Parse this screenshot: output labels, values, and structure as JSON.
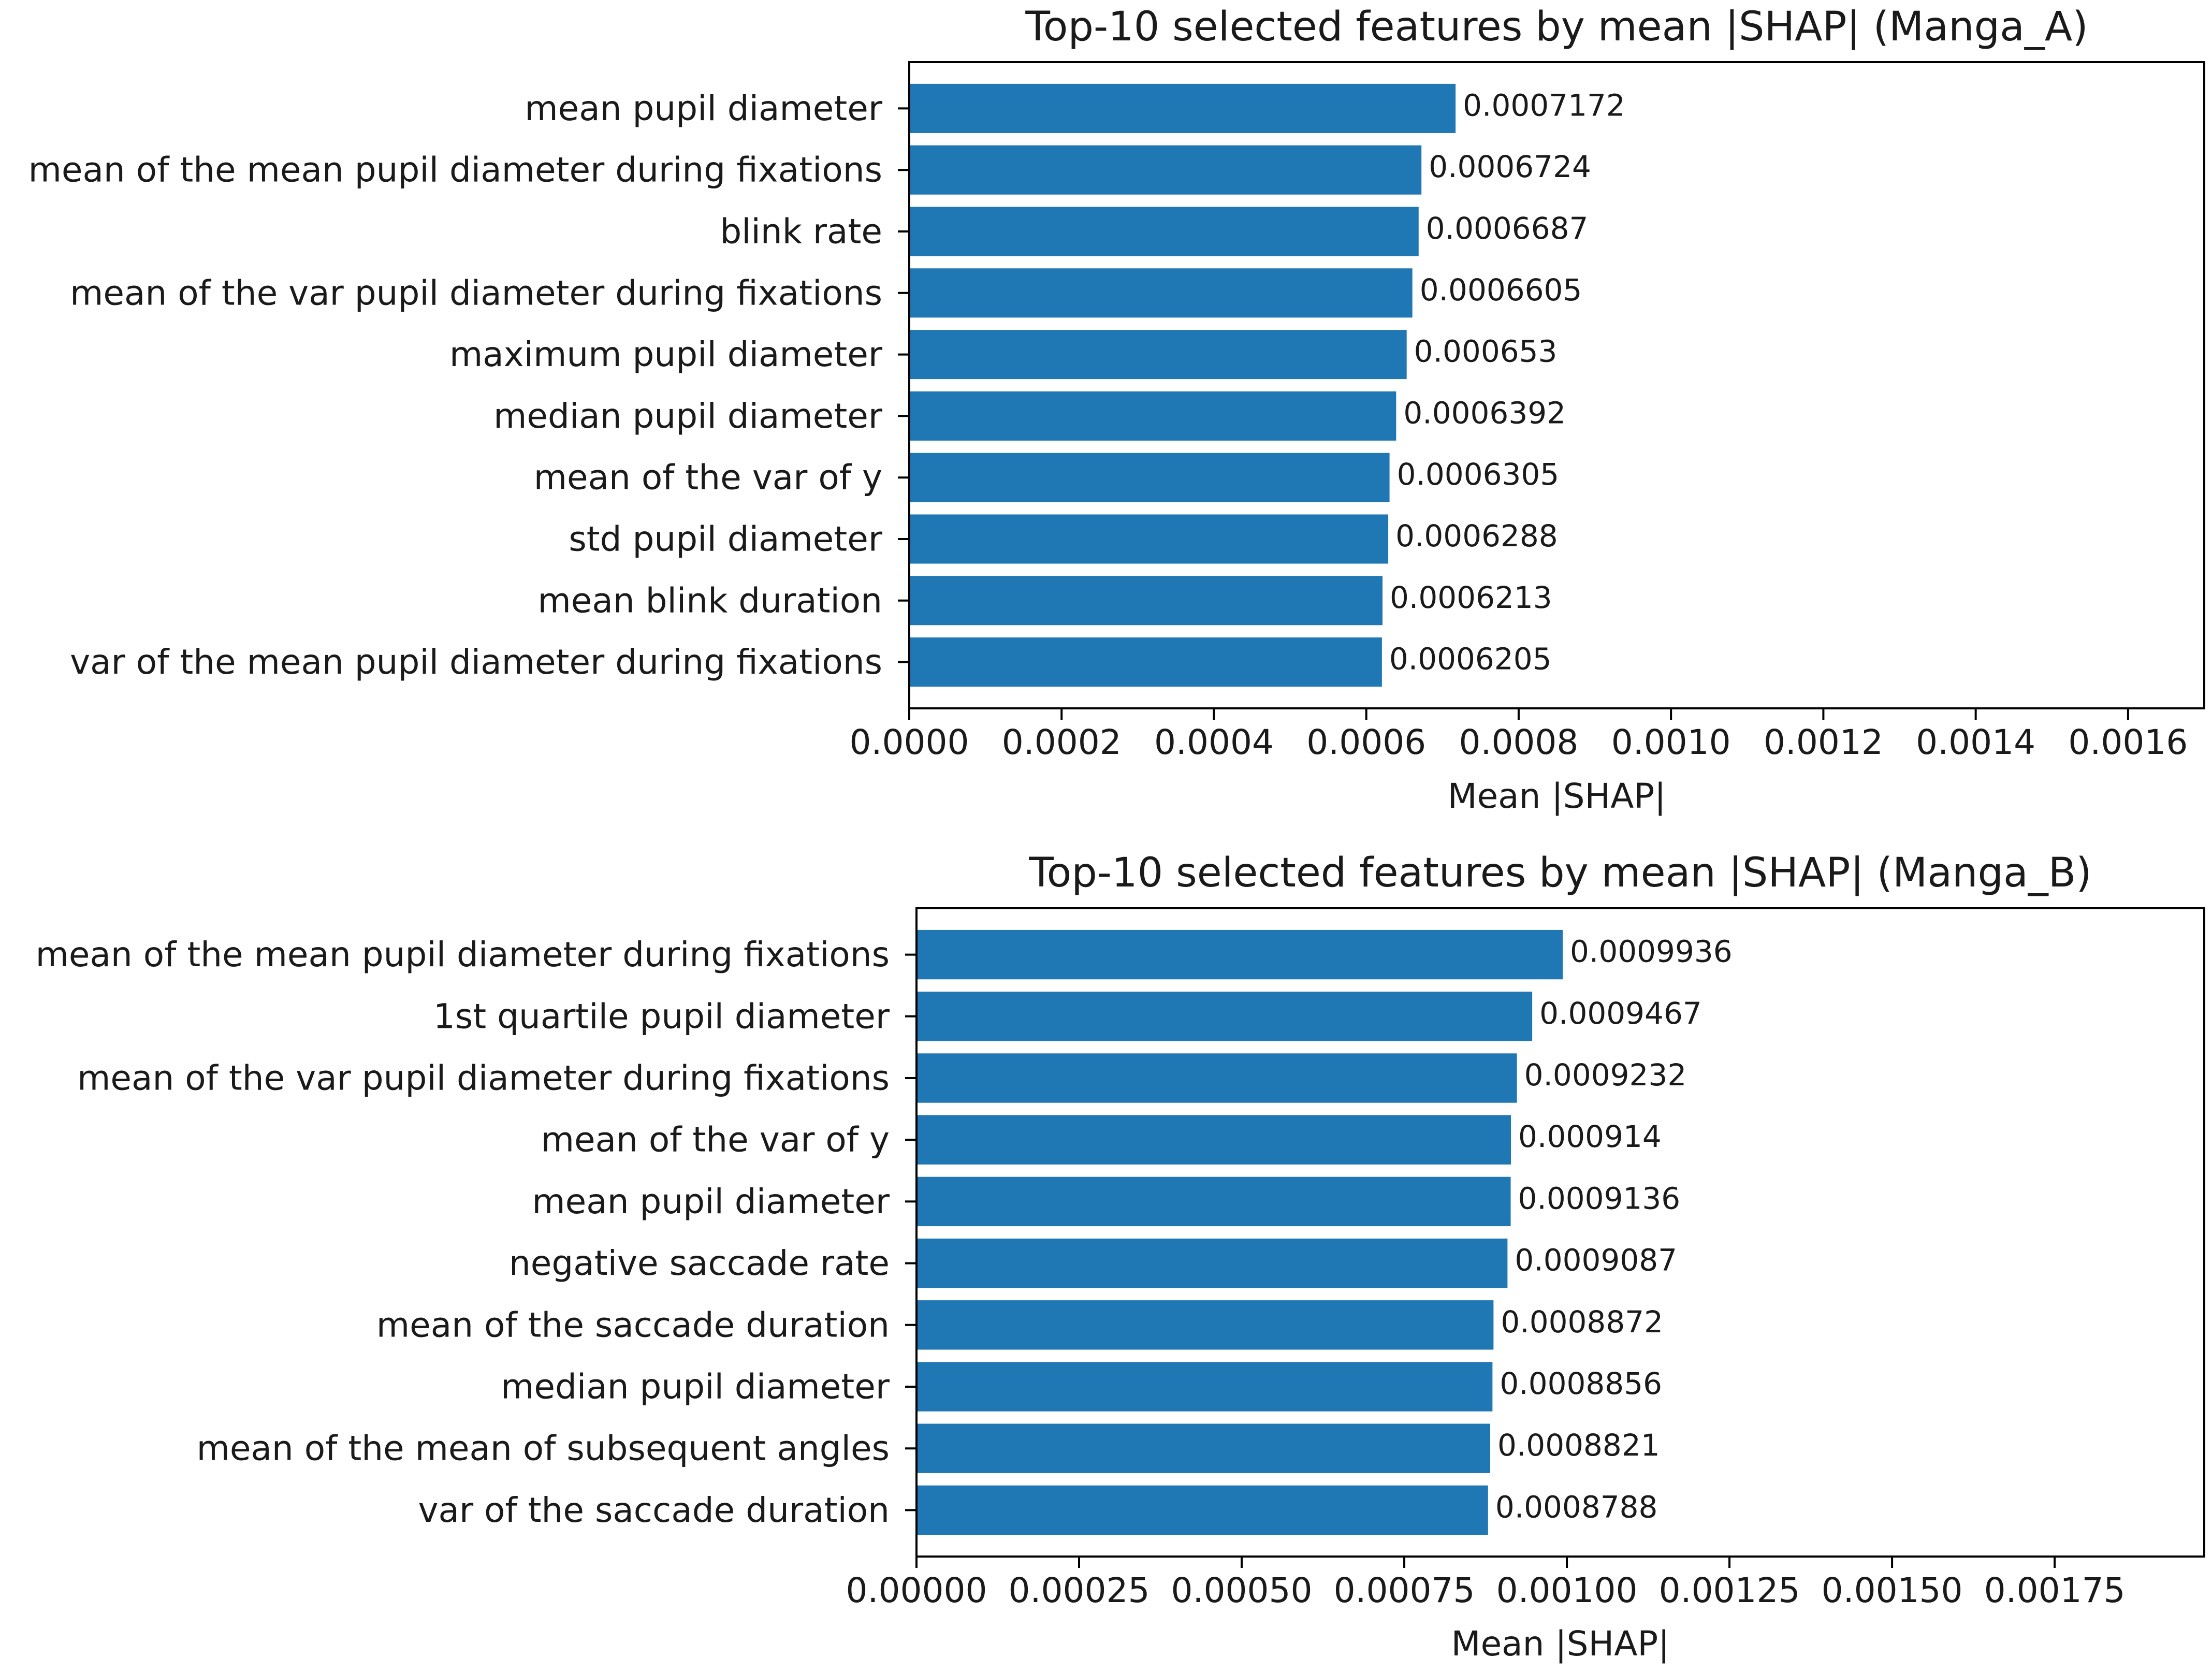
{
  "chart_data": [
    {
      "type": "bar",
      "orientation": "horizontal",
      "title": "Top-10 selected features by mean |SHAP| (Manga_A)",
      "xlabel": "Mean |SHAP|",
      "ylabel": "",
      "xlim": [
        0,
        0.0017
      ],
      "xticks": [
        "0.0000",
        "0.0002",
        "0.0004",
        "0.0006",
        "0.0008",
        "0.0010",
        "0.0012",
        "0.0014",
        "0.0016"
      ],
      "xtick_values": [
        0,
        0.0002,
        0.0004,
        0.0006,
        0.0008,
        0.001,
        0.0012,
        0.0014,
        0.0016
      ],
      "bar_color": "#1f77b4",
      "grid": false,
      "categories": [
        "mean pupil diameter",
        "mean of the mean pupil diameter during fixations",
        "blink rate",
        "mean of the var pupil diameter during fixations",
        "maximum pupil diameter",
        "median pupil diameter",
        "mean of the var of y",
        "std pupil diameter",
        "mean blink duration",
        "var of the mean pupil diameter during fixations"
      ],
      "values": [
        0.0007172,
        0.0006724,
        0.0006687,
        0.0006605,
        0.000653,
        0.0006392,
        0.0006305,
        0.0006288,
        0.0006213,
        0.0006205
      ],
      "value_labels": [
        "0.0007172",
        "0.0006724",
        "0.0006687",
        "0.0006605",
        "0.000653",
        "0.0006392",
        "0.0006305",
        "0.0006288",
        "0.0006213",
        "0.0006205"
      ]
    },
    {
      "type": "bar",
      "orientation": "horizontal",
      "title": "Top-10 selected features by mean |SHAP| (Manga_B)",
      "xlabel": "Mean |SHAP|",
      "ylabel": "",
      "xlim": [
        0,
        0.00198
      ],
      "xticks": [
        "0.00000",
        "0.00025",
        "0.00050",
        "0.00075",
        "0.00100",
        "0.00125",
        "0.00150",
        "0.00175"
      ],
      "xtick_values": [
        0,
        0.00025,
        0.0005,
        0.00075,
        0.001,
        0.00125,
        0.0015,
        0.00175
      ],
      "bar_color": "#1f77b4",
      "grid": false,
      "categories": [
        "mean of the mean pupil diameter during fixations",
        "1st quartile pupil diameter",
        "mean of the var pupil diameter during fixations",
        "mean of the var of y",
        "mean pupil diameter",
        "negative saccade rate",
        "mean of the saccade duration",
        "median pupil diameter",
        "mean of the mean of subsequent angles",
        "var of the saccade duration"
      ],
      "values": [
        0.0009936,
        0.0009467,
        0.0009232,
        0.000914,
        0.0009136,
        0.0009087,
        0.0008872,
        0.0008856,
        0.0008821,
        0.0008788
      ],
      "value_labels": [
        "0.0009936",
        "0.0009467",
        "0.0009232",
        "0.000914",
        "0.0009136",
        "0.0009087",
        "0.0008872",
        "0.0008856",
        "0.0008821",
        "0.0008788"
      ]
    }
  ]
}
